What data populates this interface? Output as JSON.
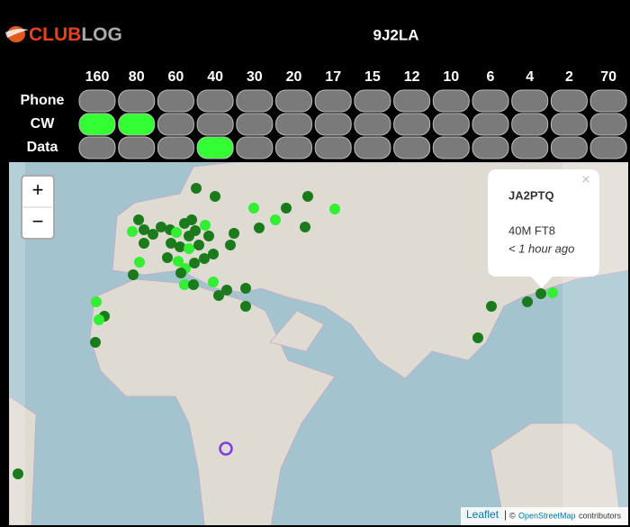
{
  "header": {
    "logo_part1": "CLUB",
    "logo_part2": "LOG",
    "callsign": "9J2LA"
  },
  "grid": {
    "bands": [
      "160",
      "80",
      "60",
      "40",
      "30",
      "20",
      "17",
      "15",
      "12",
      "10",
      "6",
      "4",
      "2",
      "70"
    ],
    "modes": [
      "Phone",
      "CW",
      "Data"
    ],
    "active": [
      [
        false,
        false,
        false,
        false,
        false,
        false,
        false,
        false,
        false,
        false,
        false,
        false,
        false,
        false
      ],
      [
        true,
        true,
        false,
        false,
        false,
        false,
        false,
        false,
        false,
        false,
        false,
        false,
        false,
        false
      ],
      [
        false,
        false,
        false,
        true,
        false,
        false,
        false,
        false,
        false,
        false,
        false,
        false,
        false,
        false
      ]
    ]
  },
  "map": {
    "zoom_in": "+",
    "zoom_out": "−",
    "popup": {
      "close": "×",
      "callsign": "JA2PTQ",
      "details": "40M FT8",
      "time": "< 1 hour ago"
    },
    "attribution": {
      "leaflet": "Leaflet",
      "separator": "|",
      "copyright": "©",
      "osm": "OpenStreetMap",
      "contributors": "contributors"
    }
  }
}
